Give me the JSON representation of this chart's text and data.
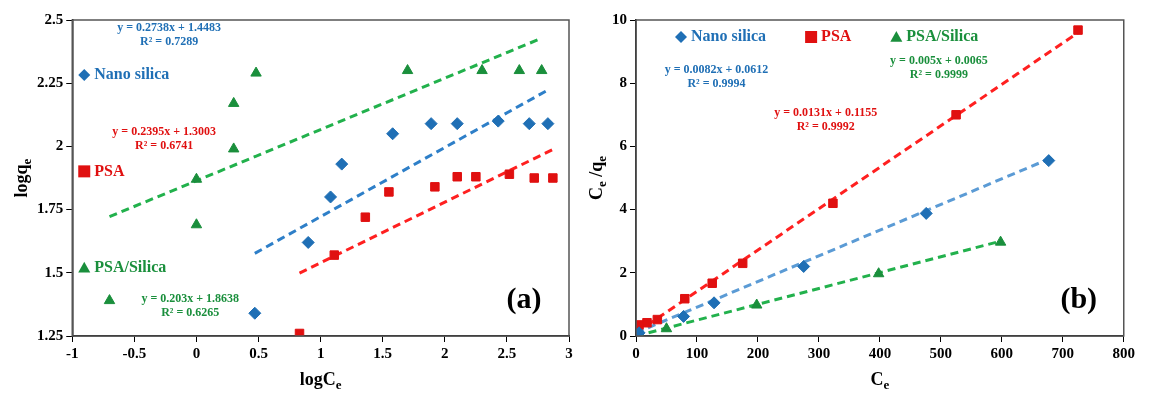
{
  "chart_data": [
    {
      "type": "scatter",
      "xlabel": "logC$_{e}$",
      "ylabel": "logq$_{e}$",
      "xlim": [
        -1,
        3
      ],
      "ylim": [
        1.25,
        2.5
      ],
      "xticks": [
        -1,
        -0.5,
        0,
        0.5,
        1,
        1.5,
        2,
        2.5,
        3
      ],
      "yticks": [
        1.25,
        1.5,
        1.75,
        2,
        2.25,
        2.5
      ],
      "grid": false,
      "legend": "left",
      "series": [
        {
          "name": "Nano silica",
          "color": "#1f6fb5",
          "marker": "diamond",
          "x": [
            0.47,
            0.9,
            1.08,
            1.17,
            1.58,
            1.89,
            2.1,
            2.43,
            2.68,
            2.83
          ],
          "values": [
            1.34,
            1.62,
            1.8,
            1.93,
            2.05,
            2.09,
            2.09,
            2.1,
            2.09,
            2.09
          ]
        },
        {
          "name": "PSA",
          "color": "#e01010",
          "marker": "square",
          "x": [
            0.83,
            1.11,
            1.36,
            1.55,
            1.92,
            2.1,
            2.25,
            2.52,
            2.72,
            2.87
          ],
          "values": [
            1.26,
            1.57,
            1.72,
            1.82,
            1.84,
            1.88,
            1.88,
            1.89,
            1.875,
            1.875
          ]
        },
        {
          "name": "PSA/Silica",
          "color": "#1a8f3c",
          "marker": "triangle",
          "x": [
            -0.7,
            0,
            0,
            0.3,
            0.3,
            0.48,
            1.7,
            2.3,
            2.6,
            2.78
          ],
          "values": [
            1.39,
            1.69,
            1.87,
            1.99,
            2.17,
            2.29,
            2.3,
            2.3,
            2.3,
            2.3
          ]
        },
        {
          "type": "line",
          "color": "#2e7fc8",
          "marker": "none",
          "line_style": "dashed",
          "x": [
            0.47,
            2.83
          ],
          "values": [
            1.577,
            2.223
          ]
        },
        {
          "type": "line",
          "color": "#ff2020",
          "marker": "none",
          "line_style": "dashed",
          "x": [
            0.83,
            2.87
          ],
          "values": [
            1.499,
            1.988
          ]
        },
        {
          "type": "line",
          "color": "#22b14c",
          "marker": "none",
          "line_style": "dashed",
          "x": [
            -0.7,
            2.78
          ],
          "values": [
            1.722,
            2.428
          ]
        }
      ],
      "annotations": [
        "y = 0.2738x + 1.4483\nR² = 0.7289",
        "y = 0.2395x + 1.3003\nR² = 0.6741",
        "y = 0.203x + 1.8638\nR² = 0.6265",
        "(a)"
      ]
    },
    {
      "type": "scatter",
      "xlabel": "C$_{e}$",
      "ylabel": "C$_{e}$ /q$_{e}$",
      "xlim": [
        0,
        800
      ],
      "ylim": [
        0,
        10
      ],
      "xticks": [
        0,
        100,
        200,
        300,
        400,
        500,
        600,
        700,
        800
      ],
      "yticks": [
        0,
        2,
        4,
        6,
        8,
        10
      ],
      "grid": false,
      "legend": "top",
      "series": [
        {
          "name": "Nano silica",
          "color": "#1f6fb5",
          "marker": "diamond",
          "x": [
            5,
            78,
            128,
            275,
            476,
            677
          ],
          "values": [
            0.1,
            0.62,
            1.05,
            2.2,
            3.88,
            5.55
          ]
        },
        {
          "name": "PSA",
          "color": "#e01010",
          "marker": "square",
          "x": [
            5,
            18,
            35,
            80,
            125,
            175,
            323,
            525,
            725
          ],
          "values": [
            0.35,
            0.42,
            0.52,
            1.18,
            1.67,
            2.3,
            4.2,
            7.0,
            9.68
          ]
        },
        {
          "name": "PSA/Silica",
          "color": "#1a8f3c",
          "marker": "triangle",
          "x": [
            50,
            198,
            398,
            598
          ],
          "values": [
            0.23,
            0.98,
            1.97,
            2.97
          ]
        },
        {
          "type": "line",
          "color": "#5b9bd5",
          "marker": "none",
          "line_style": "dashed",
          "x": [
            0,
            677
          ],
          "values": [
            0.1,
            5.6
          ]
        },
        {
          "type": "line",
          "color": "#ff2020",
          "marker": "none",
          "line_style": "dashed",
          "x": [
            0,
            725
          ],
          "values": [
            0.1,
            9.6
          ]
        },
        {
          "type": "line",
          "color": "#22b14c",
          "marker": "none",
          "line_style": "dashed",
          "x": [
            0,
            598
          ],
          "values": [
            0,
            3.0
          ]
        }
      ],
      "annotations": [
        "y = 0.0082x + 0.0612\nR² = 0.9994",
        "y = 0.0131x + 0.1155\nR² = 0.9992",
        "y = 0.005x + 0.0065\nR² = 0.9999",
        "(b)"
      ]
    }
  ]
}
